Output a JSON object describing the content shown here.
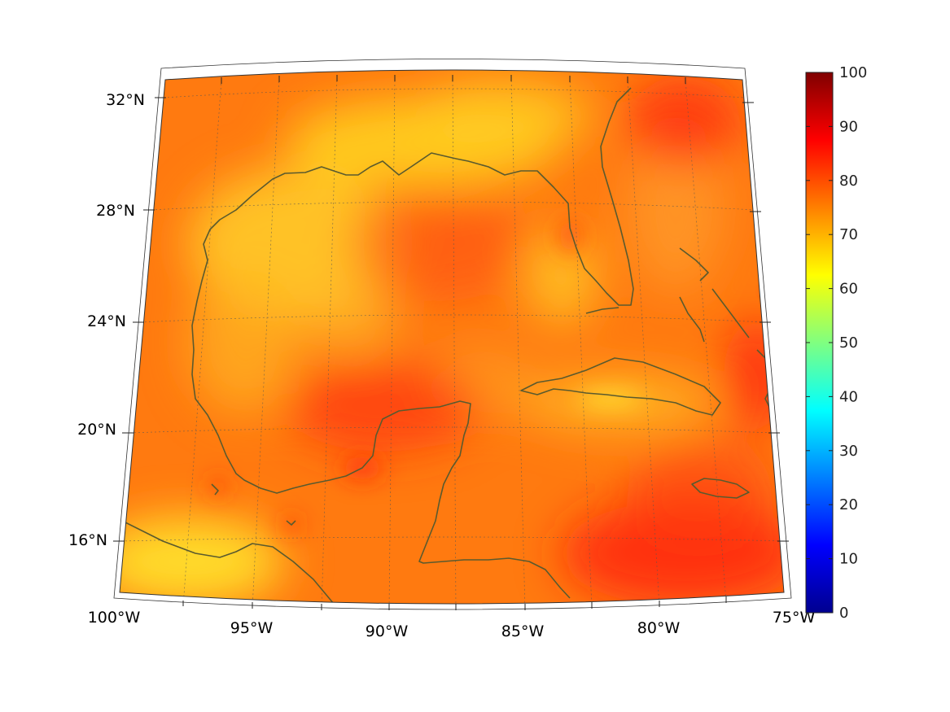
{
  "map": {
    "projection": "lambert-conformal-conic",
    "lon_range": [
      -100,
      -75
    ],
    "lat_range": [
      14,
      33
    ],
    "field_colormap": "jet",
    "coastline_color": "#5a5a2e",
    "grid": true
  },
  "axes": {
    "lon_ticks": [
      {
        "value": -100,
        "label": "100°W"
      },
      {
        "value": -95,
        "label": "95°W"
      },
      {
        "value": -90,
        "label": "90°W"
      },
      {
        "value": -85,
        "label": "85°W"
      },
      {
        "value": -80,
        "label": "80°W"
      },
      {
        "value": -75,
        "label": "75°W"
      }
    ],
    "lat_ticks": [
      {
        "value": 16,
        "label": "16°N"
      },
      {
        "value": 20,
        "label": "20°N"
      },
      {
        "value": 24,
        "label": "24°N"
      },
      {
        "value": 28,
        "label": "28°N"
      },
      {
        "value": 32,
        "label": "32°N"
      }
    ]
  },
  "colorbar": {
    "min": 0,
    "max": 100,
    "ticks": [
      "0",
      "10",
      "20",
      "30",
      "40",
      "50",
      "60",
      "70",
      "80",
      "90",
      "100"
    ],
    "colors": [
      "#00008f",
      "#0000ff",
      "#0080ff",
      "#00ffff",
      "#80ff80",
      "#ffff00",
      "#ff8000",
      "#ff0000",
      "#800000"
    ]
  }
}
